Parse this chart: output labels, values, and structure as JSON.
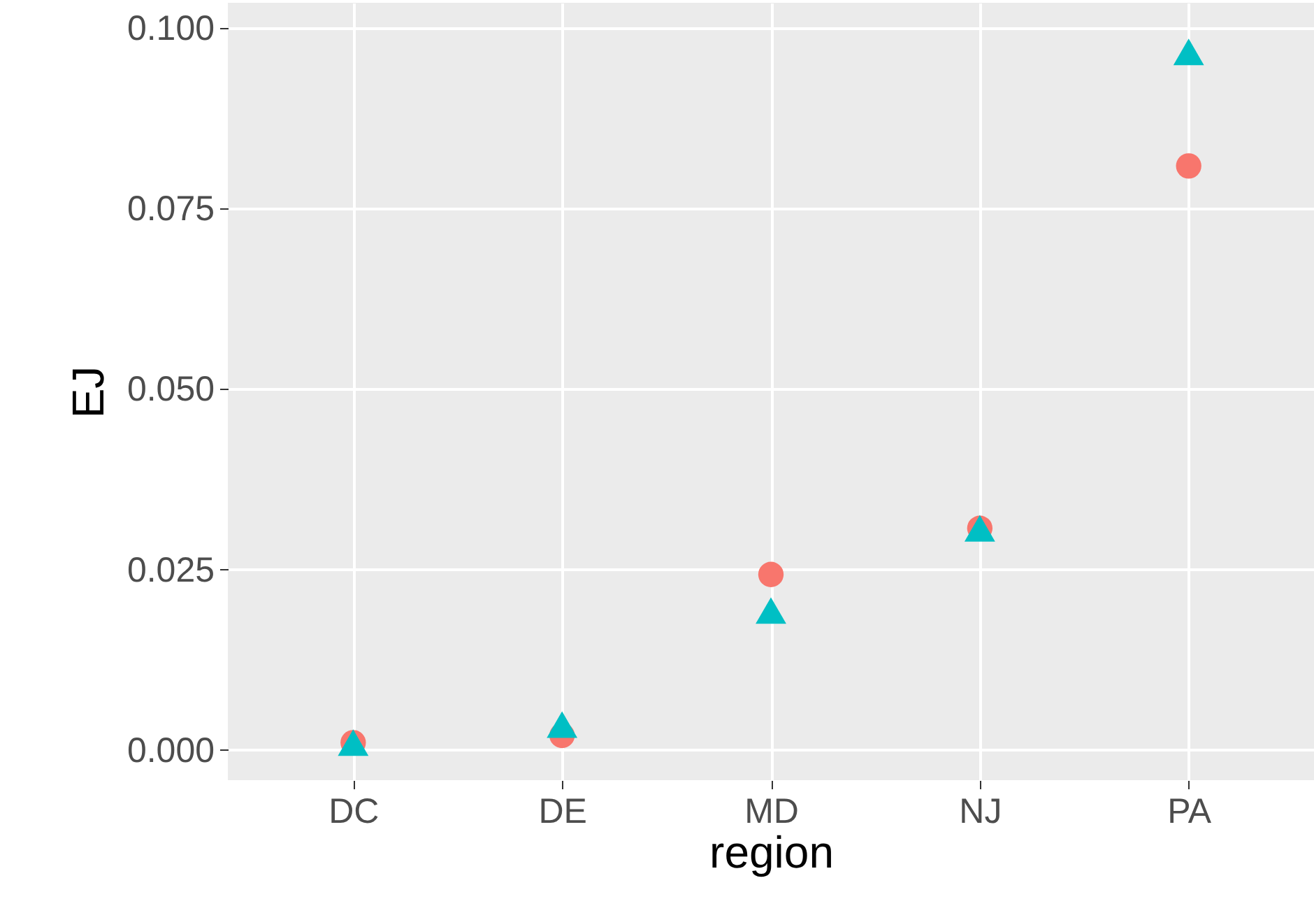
{
  "chart_data": {
    "type": "scatter",
    "xlabel": "region",
    "ylabel": "EJ",
    "categories": [
      "DC",
      "DE",
      "MD",
      "NJ",
      "PA"
    ],
    "series": [
      {
        "color": "#f8766d",
        "marker": "circle",
        "values": [
          0.001,
          0.002,
          0.0243,
          0.0307,
          0.0809
        ]
      },
      {
        "color": "#00bfc4",
        "marker": "triangle",
        "values": [
          0.001,
          0.0035,
          0.0193,
          0.0307,
          0.0967
        ]
      }
    ],
    "ylim": [
      -0.0042,
      0.1035
    ],
    "yticks": [
      {
        "value": 0,
        "label": "0.000"
      },
      {
        "value": 0.025,
        "label": "0.025"
      },
      {
        "value": 0.05,
        "label": "0.050"
      },
      {
        "value": 0.075,
        "label": "0.075"
      },
      {
        "value": 0.1,
        "label": "0.100"
      }
    ],
    "grid": true
  }
}
